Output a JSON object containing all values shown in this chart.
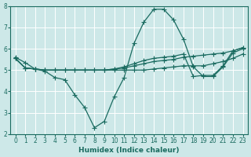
{
  "bg_color": "#cde8e8",
  "grid_color": "#b8d8d8",
  "line_color": "#1a6b60",
  "xlabel": "Humidex (Indice chaleur)",
  "ylim": [
    2,
    8
  ],
  "xlim": [
    -0.5,
    23.5
  ],
  "yticks": [
    2,
    3,
    4,
    5,
    6,
    7,
    8
  ],
  "xticks": [
    0,
    1,
    2,
    3,
    4,
    5,
    6,
    7,
    8,
    9,
    10,
    11,
    12,
    13,
    14,
    15,
    16,
    17,
    18,
    19,
    20,
    21,
    22,
    23
  ],
  "curves": [
    {
      "x": [
        0,
        1,
        2,
        3,
        4,
        5,
        6,
        7,
        8,
        9,
        10,
        11,
        12,
        13,
        14,
        15,
        16,
        17,
        18,
        19,
        20,
        21,
        22,
        23
      ],
      "y": [
        5.6,
        5.35,
        5.05,
        4.95,
        4.65,
        4.55,
        3.85,
        3.25,
        2.3,
        2.6,
        3.75,
        4.65,
        6.25,
        7.25,
        7.85,
        7.85,
        7.35,
        6.45,
        5.15,
        4.7,
        4.7,
        5.15,
        5.8,
        6.0
      ]
    },
    {
      "x": [
        0,
        1,
        2,
        3,
        4,
        5,
        6,
        7,
        8,
        9,
        10,
        11,
        12,
        13,
        14,
        15,
        16,
        17,
        18,
        19,
        20,
        21,
        22,
        23
      ],
      "y": [
        5.55,
        5.1,
        5.05,
        5.0,
        5.0,
        5.0,
        5.0,
        5.0,
        5.0,
        5.0,
        5.0,
        5.0,
        5.0,
        5.0,
        5.05,
        5.1,
        5.15,
        5.2,
        5.2,
        5.2,
        5.3,
        5.4,
        5.55,
        5.75
      ]
    },
    {
      "x": [
        0,
        1,
        2,
        3,
        4,
        5,
        6,
        7,
        8,
        9,
        10,
        11,
        12,
        13,
        14,
        15,
        16,
        17,
        18,
        19,
        20,
        21,
        22,
        23
      ],
      "y": [
        5.55,
        5.1,
        5.05,
        5.0,
        5.0,
        5.0,
        5.0,
        5.0,
        5.0,
        5.0,
        5.05,
        5.1,
        5.2,
        5.3,
        5.4,
        5.45,
        5.5,
        5.6,
        5.65,
        5.7,
        5.75,
        5.8,
        5.9,
        6.05
      ]
    },
    {
      "x": [
        0,
        1,
        2,
        3,
        9,
        10,
        11,
        12,
        13,
        14,
        15,
        16,
        17,
        18,
        19,
        20,
        21,
        22,
        23
      ],
      "y": [
        5.55,
        5.1,
        5.05,
        5.0,
        5.0,
        5.05,
        5.15,
        5.3,
        5.45,
        5.55,
        5.6,
        5.65,
        5.75,
        4.7,
        4.75,
        4.75,
        5.2,
        5.9,
        6.05
      ]
    }
  ]
}
